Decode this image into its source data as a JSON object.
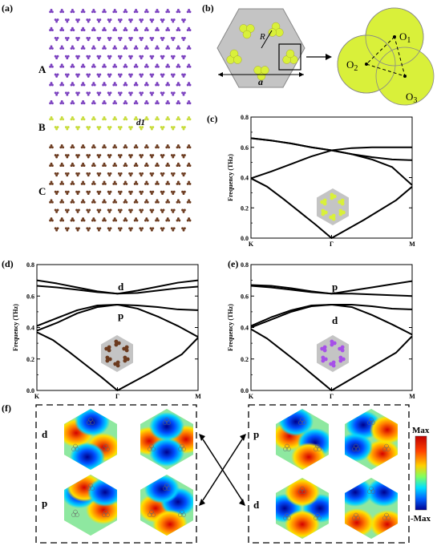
{
  "panels": {
    "a": {
      "label": "(a)",
      "rows": [
        "A",
        "B",
        "C"
      ],
      "interface": "d1"
    },
    "b": {
      "label": "(b)",
      "R": "R",
      "a": "a",
      "o1": "O",
      "o1s": "1",
      "o2": "O",
      "o2s": "2",
      "o3": "O",
      "o3s": "3"
    },
    "c": {
      "label": "(c)"
    },
    "d": {
      "label": "(d)",
      "upper": "d",
      "lower": "p"
    },
    "e": {
      "label": "(e)",
      "upper": "p",
      "lower": "d"
    },
    "f": {
      "label": "(f)",
      "left_top": "d",
      "left_bottom": "p",
      "right_top": "p",
      "right_bottom": "d",
      "colorbar_max": "Max",
      "colorbar_min": "-Max"
    }
  },
  "colors": {
    "purple": "#7a3fbf",
    "green": "#c8dc3a",
    "brown": "#6b3a1e",
    "yellow": "#d9f03a",
    "gray": "#c4c4c4",
    "violet": "#a64fe8"
  },
  "chart_data": [
    {
      "id": "c",
      "type": "line",
      "ylabel": "Frequency (THz)",
      "xticks": [
        "K",
        "Γ",
        "M"
      ],
      "yticks": [
        "0.0",
        "0.2",
        "0.4",
        "0.6",
        "0.8"
      ],
      "ylim": [
        0,
        0.8
      ],
      "series": [
        {
          "x": [
            0,
            0.2,
            0.4,
            0.6,
            0.8,
            1,
            1.4,
            1.8,
            2
          ],
          "values": [
            0.395,
            0.34,
            0.26,
            0.175,
            0.09,
            0,
            0.12,
            0.25,
            0.34
          ]
        },
        {
          "x": [
            0,
            0.25,
            0.5,
            0.75,
            1,
            1.25,
            1.5,
            1.75,
            2
          ],
          "values": [
            0.395,
            0.44,
            0.49,
            0.54,
            0.58,
            0.555,
            0.52,
            0.47,
            0.35
          ]
        },
        {
          "x": [
            0,
            0.25,
            0.5,
            0.75,
            1,
            1.25,
            1.5,
            1.75,
            2
          ],
          "values": [
            0.66,
            0.645,
            0.625,
            0.6,
            0.58,
            0.555,
            0.535,
            0.52,
            0.515
          ]
        },
        {
          "x": [
            0,
            0.25,
            0.5,
            0.75,
            1,
            1.25,
            1.5,
            1.75,
            2
          ],
          "values": [
            0.66,
            0.645,
            0.625,
            0.6,
            0.58,
            0.595,
            0.6,
            0.6,
            0.6
          ]
        }
      ]
    },
    {
      "id": "d",
      "type": "line",
      "ylabel": "Frequency (THz)",
      "xticks": [
        "K",
        "Γ",
        "M"
      ],
      "yticks": [
        "0.0",
        "0.2",
        "0.4",
        "0.6",
        "0.8"
      ],
      "ylim": [
        0,
        0.8
      ],
      "series": [
        {
          "x": [
            0,
            0.2,
            0.4,
            0.6,
            0.8,
            1,
            1.4,
            1.8,
            2
          ],
          "values": [
            0.37,
            0.32,
            0.245,
            0.165,
            0.085,
            0,
            0.11,
            0.23,
            0.335
          ]
        },
        {
          "x": [
            0,
            0.25,
            0.5,
            0.75,
            1,
            1.25,
            1.5,
            1.75,
            2
          ],
          "values": [
            0.38,
            0.43,
            0.49,
            0.53,
            0.545,
            0.52,
            0.47,
            0.41,
            0.34
          ]
        },
        {
          "x": [
            0,
            0.25,
            0.5,
            0.75,
            1,
            1.25,
            1.5,
            1.75,
            2
          ],
          "values": [
            0.41,
            0.46,
            0.51,
            0.54,
            0.545,
            0.54,
            0.53,
            0.515,
            0.51
          ]
        },
        {
          "x": [
            0,
            0.25,
            0.5,
            0.75,
            1,
            1.25,
            1.5,
            1.75,
            2
          ],
          "values": [
            0.665,
            0.655,
            0.64,
            0.625,
            0.615,
            0.62,
            0.635,
            0.65,
            0.66
          ]
        },
        {
          "x": [
            0,
            0.25,
            0.5,
            0.75,
            1,
            1.25,
            1.5,
            1.75,
            2
          ],
          "values": [
            0.7,
            0.68,
            0.655,
            0.63,
            0.615,
            0.635,
            0.66,
            0.685,
            0.7
          ]
        }
      ]
    },
    {
      "id": "e",
      "type": "line",
      "ylabel": "Frequency (THz)",
      "xticks": [
        "K",
        "Γ",
        "M"
      ],
      "yticks": [
        "0.0",
        "0.2",
        "0.4",
        "0.6",
        "0.8"
      ],
      "ylim": [
        0,
        0.8
      ],
      "series": [
        {
          "x": [
            0,
            0.2,
            0.4,
            0.6,
            0.8,
            1,
            1.4,
            1.8,
            2
          ],
          "values": [
            0.39,
            0.33,
            0.25,
            0.17,
            0.085,
            0,
            0.12,
            0.24,
            0.345
          ]
        },
        {
          "x": [
            0,
            0.25,
            0.5,
            0.75,
            1,
            1.25,
            1.5,
            1.75,
            2
          ],
          "values": [
            0.4,
            0.45,
            0.5,
            0.535,
            0.545,
            0.53,
            0.48,
            0.42,
            0.355
          ]
        },
        {
          "x": [
            0,
            0.25,
            0.5,
            0.75,
            1,
            1.25,
            1.5,
            1.75,
            2
          ],
          "values": [
            0.41,
            0.465,
            0.51,
            0.54,
            0.545,
            0.545,
            0.535,
            0.52,
            0.515
          ]
        },
        {
          "x": [
            0,
            0.25,
            0.5,
            0.75,
            1,
            1.25,
            1.5,
            1.75,
            2
          ],
          "values": [
            0.665,
            0.655,
            0.64,
            0.625,
            0.615,
            0.615,
            0.61,
            0.605,
            0.6
          ]
        },
        {
          "x": [
            0,
            0.25,
            0.5,
            0.75,
            1,
            1.25,
            1.5,
            1.75,
            2
          ],
          "values": [
            0.67,
            0.665,
            0.65,
            0.63,
            0.615,
            0.635,
            0.655,
            0.675,
            0.695
          ]
        }
      ]
    }
  ]
}
